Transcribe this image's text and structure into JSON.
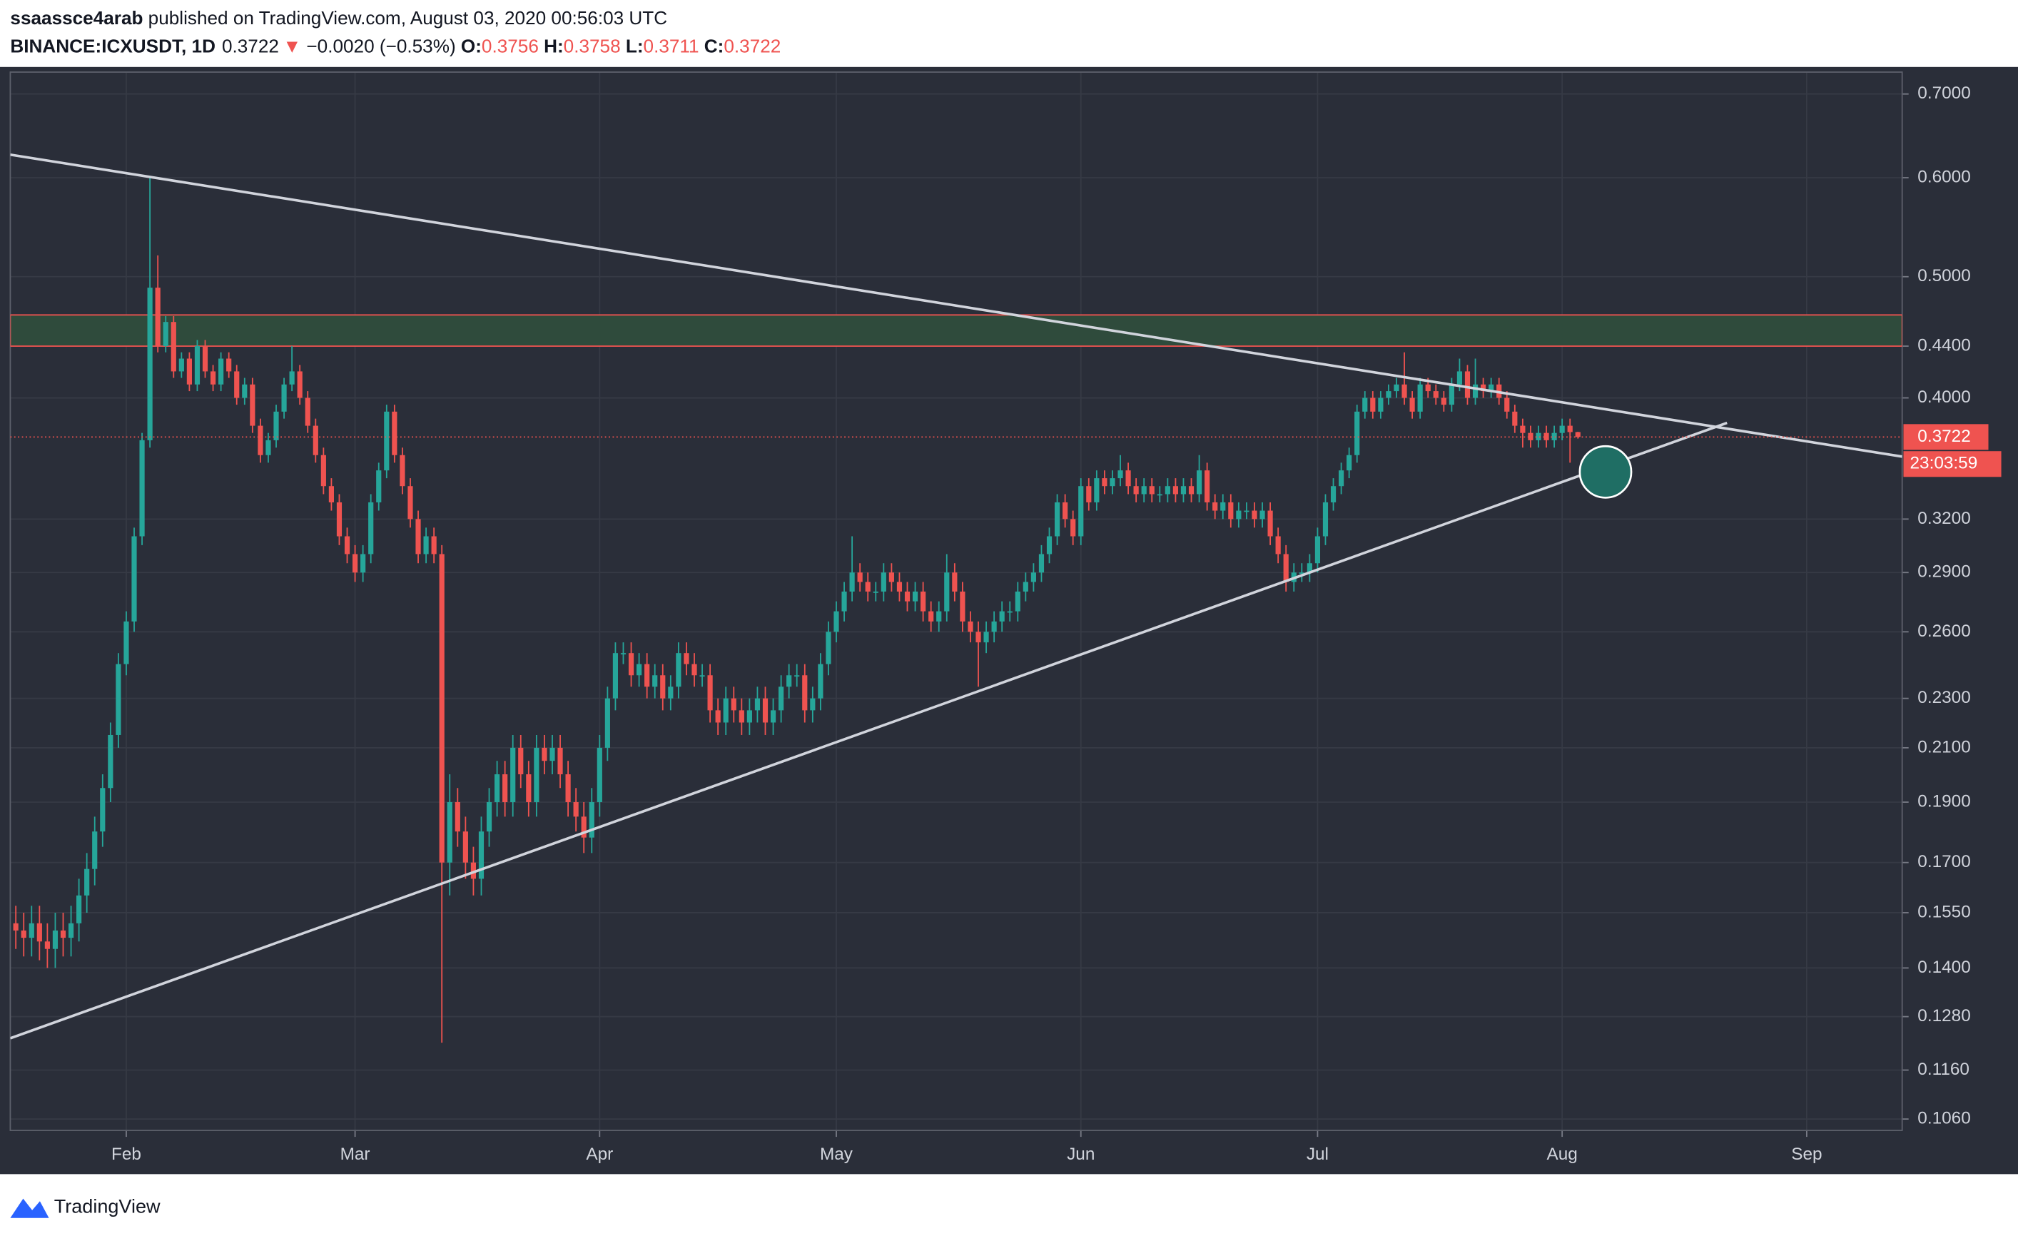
{
  "header": {
    "author": "ssaassce4arab",
    "published": "published on TradingView.com, August 03, 2020 00:56:03 UTC",
    "symbol": "BINANCE:ICXUSDT, 1D",
    "last": "0.3722",
    "arrow": "▼",
    "change": "−0.0020 (−0.53%)",
    "ohlc": [
      {
        "label": "O:",
        "value": "0.3756"
      },
      {
        "label": "H:",
        "value": "0.3758"
      },
      {
        "label": "L:",
        "value": "0.3711"
      },
      {
        "label": "C:",
        "value": "0.3722"
      }
    ]
  },
  "footer": {
    "brand": "TradingView"
  },
  "chart_data": {
    "type": "candlestick",
    "log_scale": true,
    "grid": true,
    "up_color": "#26a69a",
    "down_color": "#ef5350",
    "xlim": [
      16.3,
      256.1
    ],
    "xticks": [
      {
        "value": 31,
        "label": "Feb"
      },
      {
        "value": 60,
        "label": "Mar"
      },
      {
        "value": 91,
        "label": "Apr"
      },
      {
        "value": 121,
        "label": "May"
      },
      {
        "value": 152,
        "label": "Jun"
      },
      {
        "value": 182,
        "label": "Jul"
      },
      {
        "value": 213,
        "label": "Aug"
      },
      {
        "value": 244,
        "label": "Sep"
      }
    ],
    "ylim": [
      0.1038,
      0.7288
    ],
    "yticks": [
      {
        "value": 0.7,
        "label": "0.7000"
      },
      {
        "value": 0.6,
        "label": "0.6000"
      },
      {
        "value": 0.5,
        "label": "0.5000"
      },
      {
        "value": 0.44,
        "label": "0.4400"
      },
      {
        "value": 0.4,
        "label": "0.4000"
      },
      {
        "value": 0.32,
        "label": "0.3200"
      },
      {
        "value": 0.29,
        "label": "0.2900"
      },
      {
        "value": 0.26,
        "label": "0.2600"
      },
      {
        "value": 0.23,
        "label": "0.2300"
      },
      {
        "value": 0.21,
        "label": "0.2100"
      },
      {
        "value": 0.19,
        "label": "0.1900"
      },
      {
        "value": 0.17,
        "label": "0.1700"
      },
      {
        "value": 0.155,
        "label": "0.1550"
      },
      {
        "value": 0.14,
        "label": "0.1400"
      },
      {
        "value": 0.128,
        "label": "0.1280"
      },
      {
        "value": 0.116,
        "label": "0.1160"
      },
      {
        "value": 0.106,
        "label": "0.1060"
      }
    ],
    "last_price": {
      "value": 0.3722,
      "label": "0.3722"
    },
    "countdown": "23:03:59",
    "zone": [
      0.44,
      0.466
    ],
    "trendlines": [
      {
        "x": [
          16.3,
          256.1
        ],
        "y": [
          0.626,
          0.359
        ]
      },
      {
        "x": [
          16.3,
          233.9
        ],
        "y": [
          0.123,
          0.382
        ]
      }
    ],
    "marker": {
      "x": 218.5,
      "y": 0.349
    },
    "x": [
      17,
      18,
      19,
      20,
      21,
      22,
      23,
      24,
      25,
      26,
      27,
      28,
      29,
      30,
      31,
      32,
      33,
      34,
      35,
      36,
      37,
      38,
      39,
      40,
      41,
      42,
      43,
      44,
      45,
      46,
      47,
      48,
      49,
      50,
      51,
      52,
      53,
      54,
      55,
      56,
      57,
      58,
      59,
      60,
      61,
      62,
      63,
      64,
      65,
      66,
      67,
      68,
      69,
      70,
      71,
      72,
      73,
      74,
      75,
      76,
      77,
      78,
      79,
      80,
      81,
      82,
      83,
      84,
      85,
      86,
      87,
      88,
      89,
      90,
      91,
      92,
      93,
      94,
      95,
      96,
      97,
      98,
      99,
      100,
      101,
      102,
      103,
      104,
      105,
      106,
      107,
      108,
      109,
      110,
      111,
      112,
      113,
      114,
      115,
      116,
      117,
      118,
      119,
      120,
      121,
      122,
      123,
      124,
      125,
      126,
      127,
      128,
      129,
      130,
      131,
      132,
      133,
      134,
      135,
      136,
      137,
      138,
      139,
      140,
      141,
      142,
      143,
      144,
      145,
      146,
      147,
      148,
      149,
      150,
      151,
      152,
      153,
      154,
      155,
      156,
      157,
      158,
      159,
      160,
      161,
      162,
      163,
      164,
      165,
      166,
      167,
      168,
      169,
      170,
      171,
      172,
      173,
      174,
      175,
      176,
      177,
      178,
      179,
      180,
      181,
      182,
      183,
      184,
      185,
      186,
      187,
      188,
      189,
      190,
      191,
      192,
      193,
      194,
      195,
      196,
      197,
      198,
      199,
      200,
      201,
      202,
      203,
      204,
      205,
      206,
      207,
      208,
      209,
      210,
      211,
      212,
      213,
      214,
      215
    ],
    "open": [
      0.152,
      0.15,
      0.148,
      0.152,
      0.147,
      0.145,
      0.15,
      0.148,
      0.152,
      0.16,
      0.168,
      0.18,
      0.195,
      0.215,
      0.245,
      0.265,
      0.31,
      0.37,
      0.49,
      0.44,
      0.46,
      0.42,
      0.43,
      0.41,
      0.44,
      0.42,
      0.41,
      0.43,
      0.42,
      0.4,
      0.41,
      0.38,
      0.36,
      0.37,
      0.39,
      0.41,
      0.42,
      0.4,
      0.38,
      0.36,
      0.34,
      0.33,
      0.31,
      0.3,
      0.29,
      0.3,
      0.33,
      0.35,
      0.39,
      0.36,
      0.34,
      0.32,
      0.3,
      0.31,
      0.3,
      0.17,
      0.19,
      0.18,
      0.17,
      0.165,
      0.18,
      0.19,
      0.2,
      0.19,
      0.21,
      0.2,
      0.19,
      0.21,
      0.205,
      0.21,
      0.2,
      0.19,
      0.185,
      0.178,
      0.19,
      0.21,
      0.23,
      0.25,
      0.25,
      0.24,
      0.245,
      0.235,
      0.24,
      0.23,
      0.235,
      0.25,
      0.245,
      0.24,
      0.24,
      0.225,
      0.22,
      0.23,
      0.225,
      0.22,
      0.225,
      0.23,
      0.22,
      0.225,
      0.235,
      0.24,
      0.24,
      0.225,
      0.23,
      0.245,
      0.26,
      0.27,
      0.28,
      0.29,
      0.285,
      0.28,
      0.28,
      0.29,
      0.285,
      0.28,
      0.275,
      0.28,
      0.27,
      0.265,
      0.27,
      0.29,
      0.28,
      0.265,
      0.26,
      0.255,
      0.26,
      0.265,
      0.27,
      0.27,
      0.28,
      0.285,
      0.29,
      0.3,
      0.31,
      0.33,
      0.32,
      0.31,
      0.34,
      0.33,
      0.345,
      0.34,
      0.345,
      0.35,
      0.34,
      0.335,
      0.34,
      0.335,
      0.335,
      0.34,
      0.335,
      0.34,
      0.335,
      0.35,
      0.33,
      0.325,
      0.33,
      0.32,
      0.325,
      0.325,
      0.32,
      0.325,
      0.31,
      0.3,
      0.285,
      0.29,
      0.29,
      0.295,
      0.31,
      0.33,
      0.34,
      0.35,
      0.36,
      0.39,
      0.4,
      0.39,
      0.4,
      0.405,
      0.41,
      0.4,
      0.39,
      0.41,
      0.405,
      0.4,
      0.395,
      0.41,
      0.42,
      0.4,
      0.41,
      0.405,
      0.41,
      0.4,
      0.39,
      0.38,
      0.375,
      0.37,
      0.375,
      0.37,
      0.375,
      0.38,
      0.3756
    ],
    "high": [
      0.157,
      0.155,
      0.157,
      0.157,
      0.152,
      0.155,
      0.155,
      0.157,
      0.165,
      0.173,
      0.185,
      0.2,
      0.22,
      0.25,
      0.27,
      0.315,
      0.375,
      0.6,
      0.52,
      0.465,
      0.465,
      0.435,
      0.435,
      0.445,
      0.445,
      0.425,
      0.435,
      0.435,
      0.425,
      0.415,
      0.415,
      0.385,
      0.375,
      0.395,
      0.415,
      0.44,
      0.425,
      0.405,
      0.385,
      0.365,
      0.345,
      0.335,
      0.315,
      0.305,
      0.305,
      0.335,
      0.355,
      0.395,
      0.395,
      0.365,
      0.345,
      0.325,
      0.315,
      0.315,
      0.305,
      0.2,
      0.195,
      0.185,
      0.175,
      0.185,
      0.195,
      0.205,
      0.205,
      0.215,
      0.215,
      0.205,
      0.215,
      0.215,
      0.215,
      0.215,
      0.205,
      0.195,
      0.19,
      0.195,
      0.215,
      0.235,
      0.255,
      0.255,
      0.255,
      0.25,
      0.25,
      0.245,
      0.245,
      0.24,
      0.255,
      0.255,
      0.25,
      0.245,
      0.245,
      0.23,
      0.235,
      0.235,
      0.23,
      0.23,
      0.235,
      0.235,
      0.23,
      0.24,
      0.245,
      0.245,
      0.245,
      0.235,
      0.25,
      0.265,
      0.275,
      0.285,
      0.31,
      0.295,
      0.29,
      0.285,
      0.295,
      0.295,
      0.29,
      0.285,
      0.285,
      0.285,
      0.275,
      0.275,
      0.3,
      0.295,
      0.285,
      0.27,
      0.265,
      0.265,
      0.27,
      0.275,
      0.275,
      0.285,
      0.29,
      0.295,
      0.305,
      0.315,
      0.335,
      0.335,
      0.325,
      0.345,
      0.345,
      0.35,
      0.35,
      0.35,
      0.36,
      0.355,
      0.345,
      0.345,
      0.345,
      0.34,
      0.345,
      0.345,
      0.345,
      0.345,
      0.36,
      0.355,
      0.335,
      0.335,
      0.335,
      0.33,
      0.33,
      0.33,
      0.33,
      0.33,
      0.315,
      0.305,
      0.295,
      0.295,
      0.3,
      0.315,
      0.335,
      0.345,
      0.355,
      0.365,
      0.395,
      0.405,
      0.405,
      0.405,
      0.41,
      0.415,
      0.435,
      0.405,
      0.415,
      0.415,
      0.41,
      0.405,
      0.415,
      0.43,
      0.425,
      0.43,
      0.415,
      0.415,
      0.415,
      0.405,
      0.395,
      0.385,
      0.38,
      0.38,
      0.38,
      0.38,
      0.385,
      0.385,
      0.3758
    ],
    "low": [
      0.145,
      0.143,
      0.143,
      0.142,
      0.14,
      0.14,
      0.143,
      0.143,
      0.147,
      0.155,
      0.163,
      0.175,
      0.19,
      0.21,
      0.24,
      0.26,
      0.305,
      0.365,
      0.435,
      0.435,
      0.415,
      0.415,
      0.405,
      0.405,
      0.415,
      0.405,
      0.405,
      0.415,
      0.395,
      0.395,
      0.375,
      0.355,
      0.355,
      0.365,
      0.385,
      0.405,
      0.395,
      0.375,
      0.355,
      0.335,
      0.325,
      0.305,
      0.295,
      0.285,
      0.285,
      0.295,
      0.325,
      0.345,
      0.355,
      0.335,
      0.315,
      0.295,
      0.295,
      0.295,
      0.122,
      0.16,
      0.175,
      0.165,
      0.16,
      0.16,
      0.175,
      0.185,
      0.185,
      0.185,
      0.195,
      0.185,
      0.185,
      0.2,
      0.2,
      0.195,
      0.185,
      0.18,
      0.173,
      0.173,
      0.185,
      0.205,
      0.225,
      0.245,
      0.235,
      0.235,
      0.23,
      0.23,
      0.225,
      0.225,
      0.23,
      0.24,
      0.235,
      0.235,
      0.22,
      0.215,
      0.215,
      0.22,
      0.215,
      0.215,
      0.22,
      0.215,
      0.215,
      0.22,
      0.23,
      0.235,
      0.22,
      0.22,
      0.225,
      0.24,
      0.255,
      0.265,
      0.275,
      0.28,
      0.275,
      0.275,
      0.275,
      0.28,
      0.275,
      0.27,
      0.27,
      0.265,
      0.26,
      0.26,
      0.265,
      0.275,
      0.26,
      0.255,
      0.235,
      0.25,
      0.255,
      0.26,
      0.265,
      0.265,
      0.275,
      0.28,
      0.285,
      0.295,
      0.305,
      0.315,
      0.305,
      0.305,
      0.325,
      0.325,
      0.335,
      0.335,
      0.34,
      0.335,
      0.33,
      0.33,
      0.33,
      0.33,
      0.33,
      0.33,
      0.33,
      0.33,
      0.33,
      0.325,
      0.32,
      0.32,
      0.315,
      0.315,
      0.32,
      0.315,
      0.315,
      0.305,
      0.295,
      0.28,
      0.28,
      0.285,
      0.285,
      0.29,
      0.305,
      0.325,
      0.335,
      0.345,
      0.355,
      0.385,
      0.385,
      0.385,
      0.395,
      0.4,
      0.395,
      0.385,
      0.385,
      0.4,
      0.395,
      0.39,
      0.39,
      0.405,
      0.395,
      0.395,
      0.4,
      0.4,
      0.395,
      0.385,
      0.375,
      0.365,
      0.365,
      0.365,
      0.365,
      0.365,
      0.37,
      0.355,
      0.3711
    ],
    "close": [
      0.15,
      0.148,
      0.152,
      0.147,
      0.145,
      0.15,
      0.148,
      0.152,
      0.16,
      0.168,
      0.18,
      0.195,
      0.215,
      0.245,
      0.265,
      0.31,
      0.37,
      0.49,
      0.44,
      0.46,
      0.42,
      0.43,
      0.41,
      0.44,
      0.42,
      0.41,
      0.43,
      0.42,
      0.4,
      0.41,
      0.38,
      0.36,
      0.37,
      0.39,
      0.41,
      0.42,
      0.4,
      0.38,
      0.36,
      0.34,
      0.33,
      0.31,
      0.3,
      0.29,
      0.3,
      0.33,
      0.35,
      0.39,
      0.36,
      0.34,
      0.32,
      0.3,
      0.31,
      0.3,
      0.17,
      0.19,
      0.18,
      0.17,
      0.165,
      0.18,
      0.19,
      0.2,
      0.19,
      0.21,
      0.2,
      0.19,
      0.21,
      0.205,
      0.21,
      0.2,
      0.19,
      0.185,
      0.178,
      0.19,
      0.21,
      0.23,
      0.25,
      0.25,
      0.24,
      0.245,
      0.235,
      0.24,
      0.23,
      0.235,
      0.25,
      0.245,
      0.24,
      0.24,
      0.225,
      0.22,
      0.23,
      0.225,
      0.22,
      0.225,
      0.23,
      0.22,
      0.225,
      0.235,
      0.24,
      0.24,
      0.225,
      0.23,
      0.245,
      0.26,
      0.27,
      0.28,
      0.29,
      0.285,
      0.28,
      0.28,
      0.29,
      0.285,
      0.28,
      0.275,
      0.28,
      0.27,
      0.265,
      0.27,
      0.29,
      0.28,
      0.265,
      0.26,
      0.255,
      0.26,
      0.265,
      0.27,
      0.27,
      0.28,
      0.285,
      0.29,
      0.3,
      0.31,
      0.33,
      0.32,
      0.31,
      0.34,
      0.33,
      0.345,
      0.34,
      0.345,
      0.35,
      0.34,
      0.335,
      0.34,
      0.335,
      0.335,
      0.34,
      0.335,
      0.34,
      0.335,
      0.35,
      0.33,
      0.325,
      0.33,
      0.32,
      0.325,
      0.325,
      0.32,
      0.325,
      0.31,
      0.3,
      0.285,
      0.29,
      0.29,
      0.295,
      0.31,
      0.33,
      0.34,
      0.35,
      0.36,
      0.39,
      0.4,
      0.39,
      0.4,
      0.405,
      0.41,
      0.4,
      0.39,
      0.41,
      0.405,
      0.4,
      0.395,
      0.41,
      0.42,
      0.4,
      0.41,
      0.405,
      0.41,
      0.4,
      0.39,
      0.38,
      0.375,
      0.37,
      0.375,
      0.37,
      0.375,
      0.38,
      0.3756,
      0.3722
    ]
  }
}
